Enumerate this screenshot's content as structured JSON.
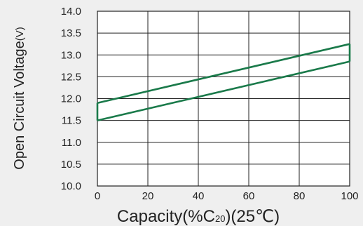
{
  "chart_data": {
    "type": "line",
    "title": "",
    "ylabel": "Open Circuit Voltage",
    "ylabel_unit": "(V)",
    "xlabel": {
      "prefix": "Capacity(%C",
      "subscript": "20",
      "suffix": ")(25℃)"
    },
    "ylim": [
      10.0,
      14.0
    ],
    "xlim": [
      0,
      100
    ],
    "grid": true,
    "legend": "none",
    "x_ticks": [
      "0",
      "20",
      "40",
      "60",
      "80",
      "100"
    ],
    "y_ticks": [
      "14.0",
      "13.5",
      "13.0",
      "12.5",
      "12.0",
      "11.5",
      "11.0",
      "10.5",
      "10.0"
    ],
    "series": [
      {
        "x": [
          0,
          100
        ],
        "y": [
          11.9,
          13.25
        ]
      },
      {
        "x": [
          0,
          100
        ],
        "y": [
          11.5,
          12.85
        ]
      }
    ],
    "colors": {
      "series": "#1a7a4a",
      "grid": "#222222",
      "background": "#efefef",
      "plot_background": "#ffffff"
    }
  }
}
